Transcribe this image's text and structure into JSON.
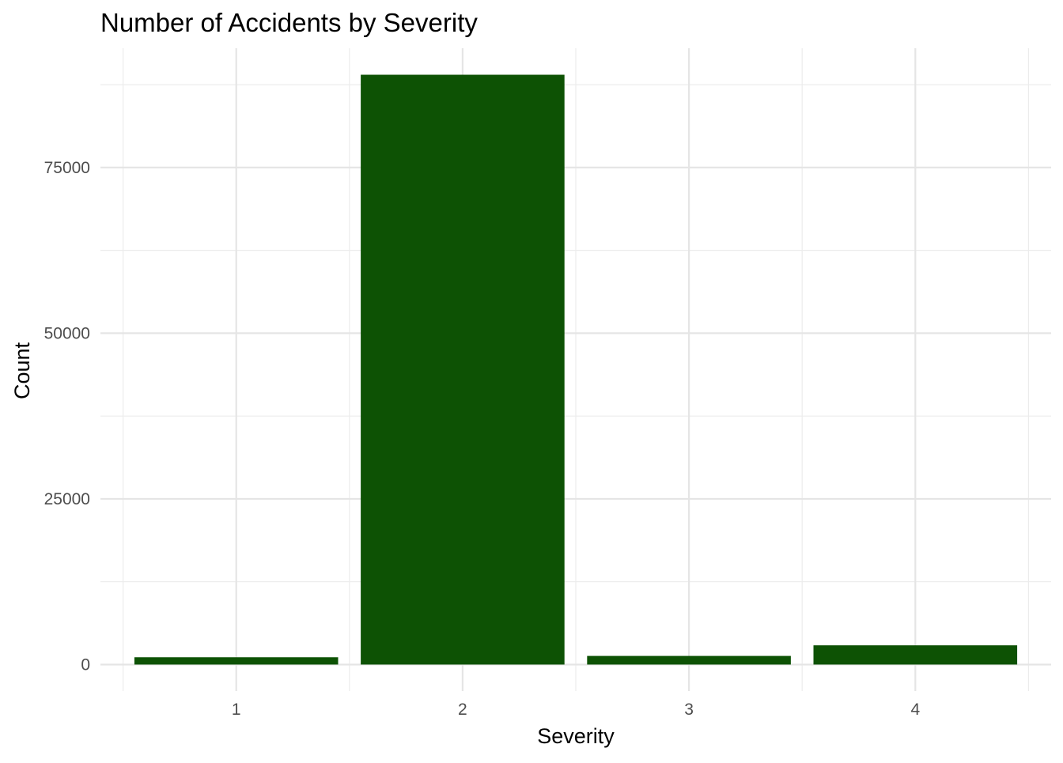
{
  "colors": {
    "bar_fill": "#0d5204",
    "grid_major": "#e5e5e5",
    "grid_minor": "#ececec",
    "tick_text": "#4d4d4d",
    "title_text": "#000000",
    "background": "#ffffff"
  },
  "chart_data": {
    "type": "bar",
    "title": "Number of Accidents by Severity",
    "xlabel": "Severity",
    "ylabel": "Count",
    "categories": [
      "1",
      "2",
      "3",
      "4"
    ],
    "values": [
      1100,
      89000,
      1300,
      2900
    ],
    "ylim": [
      -4000,
      93000
    ],
    "yticks": [
      0,
      25000,
      50000,
      75000
    ],
    "ytick_labels": [
      "0",
      "25000",
      "50000",
      "75000"
    ],
    "grid": true,
    "legend": "none"
  }
}
